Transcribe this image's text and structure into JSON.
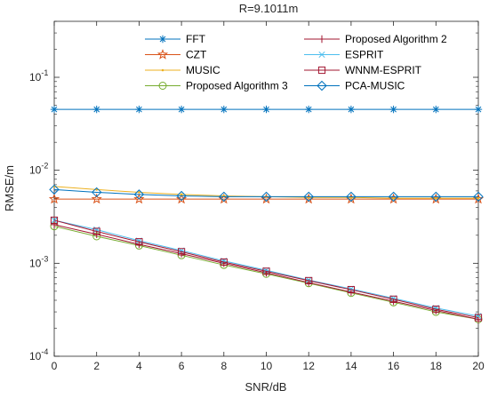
{
  "chart_data": {
    "type": "line",
    "title": "R=9.1011m",
    "xlabel": "SNR/dB",
    "ylabel": "RMSE/m",
    "xlim": [
      0,
      20
    ],
    "ylim": [
      0.0001,
      0.4
    ],
    "yscale": "log",
    "grid": false,
    "legend_position": "top",
    "x": [
      0,
      2,
      4,
      6,
      8,
      10,
      12,
      14,
      16,
      18,
      20
    ],
    "xticks": [
      "0",
      "2",
      "4",
      "6",
      "8",
      "10",
      "12",
      "14",
      "16",
      "18",
      "20"
    ],
    "yticks": [
      {
        "value": 0.0001,
        "base": "10",
        "exp": "-4"
      },
      {
        "value": 0.001,
        "base": "10",
        "exp": "-3"
      },
      {
        "value": 0.01,
        "base": "10",
        "exp": "-2"
      },
      {
        "value": 0.1,
        "base": "10",
        "exp": "-1"
      }
    ],
    "series": [
      {
        "name": "FFT",
        "color": "#0072BD",
        "marker": "asterisk",
        "values": [
          0.0452,
          0.0452,
          0.0452,
          0.0452,
          0.0452,
          0.0452,
          0.0452,
          0.0452,
          0.0452,
          0.0452,
          0.0452
        ]
      },
      {
        "name": "CZT",
        "color": "#D95319",
        "marker": "pentagram",
        "values": [
          0.0049,
          0.0049,
          0.0049,
          0.0049,
          0.0049,
          0.0049,
          0.0049,
          0.0049,
          0.0049,
          0.0049,
          0.0049
        ]
      },
      {
        "name": "MUSIC",
        "color": "#EDB120",
        "marker": "dot",
        "values": [
          0.0067,
          0.0062,
          0.0058,
          0.0055,
          0.0053,
          0.0052,
          0.0051,
          0.0051,
          0.005,
          0.005,
          0.005
        ]
      },
      {
        "name": "Proposed Algorithm 3",
        "color": "#77AC30",
        "marker": "circle",
        "values": [
          0.0025,
          0.00195,
          0.00155,
          0.00122,
          0.00096,
          0.00077,
          0.00061,
          0.00048,
          0.00038,
          0.0003,
          0.00025
        ]
      },
      {
        "name": "Proposed Algorithm 2",
        "color": "#A2142F",
        "marker": "plus",
        "values": [
          0.0026,
          0.00205,
          0.0016,
          0.00127,
          0.001,
          0.00079,
          0.00062,
          0.00049,
          0.00039,
          0.00031,
          0.00025
        ]
      },
      {
        "name": "ESPRIT",
        "color": "#4DBEEE",
        "marker": "x",
        "values": [
          0.0029,
          0.0023,
          0.00175,
          0.00137,
          0.00106,
          0.00084,
          0.00066,
          0.00053,
          0.00042,
          0.00033,
          0.00027
        ]
      },
      {
        "name": "WNNM-ESPRIT",
        "color": "#A2142F",
        "marker": "square",
        "values": [
          0.0029,
          0.0022,
          0.0017,
          0.00133,
          0.00103,
          0.00082,
          0.00065,
          0.00052,
          0.00041,
          0.00032,
          0.00026
        ]
      },
      {
        "name": "PCA-MUSIC",
        "color": "#0072BD",
        "marker": "diamond",
        "values": [
          0.0062,
          0.0058,
          0.0055,
          0.0053,
          0.0052,
          0.0052,
          0.0052,
          0.0052,
          0.0052,
          0.0052,
          0.0052
        ]
      }
    ]
  }
}
